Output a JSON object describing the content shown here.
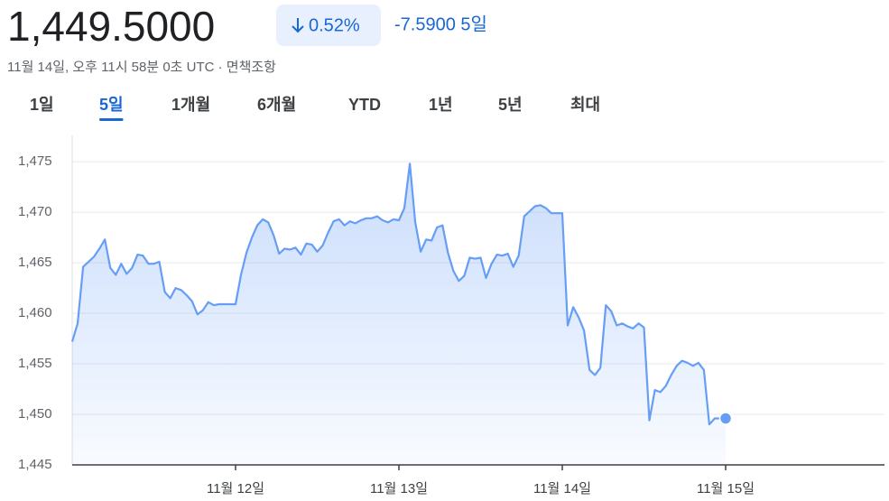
{
  "header": {
    "price": "1,449.5000",
    "change_pct": "0.52%",
    "change_abs": "-7.5900 5일",
    "timestamp": "11월 14일, 오후 11시 58분 0초 UTC · 면책조항"
  },
  "tabs": [
    "1일",
    "5일",
    "1개월",
    "6개월",
    "YTD",
    "1년",
    "5년",
    "최대"
  ],
  "selected_tab": 1,
  "chart_data": {
    "type": "line",
    "color": "#669df6",
    "categories": [
      null,
      null,
      null,
      null,
      null,
      null,
      null,
      null,
      null,
      null,
      null,
      null,
      null,
      null,
      null,
      null,
      null,
      null,
      null,
      null,
      null,
      null,
      null,
      null,
      null,
      null,
      null,
      null,
      null,
      null,
      "11월 12일",
      null,
      null,
      null,
      null,
      null,
      null,
      null,
      null,
      null,
      null,
      null,
      null,
      null,
      null,
      null,
      null,
      null,
      null,
      null,
      null,
      null,
      null,
      null,
      null,
      null,
      null,
      null,
      null,
      null,
      "11월 13일",
      null,
      null,
      null,
      null,
      null,
      null,
      null,
      null,
      null,
      null,
      null,
      null,
      null,
      null,
      null,
      null,
      null,
      null,
      null,
      null,
      null,
      null,
      null,
      null,
      null,
      null,
      null,
      null,
      null,
      "11월 14일",
      null,
      null,
      null,
      null,
      null,
      null,
      null,
      null,
      null,
      null,
      null,
      null,
      null,
      null,
      null,
      null,
      null,
      null,
      null,
      null,
      null,
      null,
      null,
      null,
      null,
      null,
      null,
      null,
      null,
      "11월 15일"
    ],
    "values": [
      1457.2,
      1459.0,
      1464.6,
      1465.1,
      1465.6,
      1466.4,
      1467.3,
      1464.5,
      1463.8,
      1464.9,
      1463.9,
      1464.5,
      1465.8,
      1465.7,
      1464.9,
      1464.9,
      1465.1,
      1462.1,
      1461.5,
      1462.5,
      1462.3,
      1461.8,
      1461.2,
      1459.9,
      1460.3,
      1461.1,
      1460.8,
      1460.9,
      1460.9,
      1460.9,
      1460.9,
      1463.8,
      1466.0,
      1467.5,
      1468.7,
      1469.3,
      1469.0,
      1467.7,
      1465.9,
      1466.4,
      1466.3,
      1466.5,
      1465.8,
      1466.9,
      1466.8,
      1466.1,
      1466.7,
      1468.0,
      1469.1,
      1469.3,
      1468.7,
      1469.1,
      1468.9,
      1469.2,
      1469.4,
      1469.4,
      1469.6,
      1469.2,
      1469.0,
      1469.3,
      1469.2,
      1470.4,
      1474.8,
      1469.0,
      1466.1,
      1467.3,
      1467.2,
      1468.5,
      1468.7,
      1466.0,
      1464.2,
      1463.2,
      1463.7,
      1465.5,
      1465.4,
      1465.5,
      1463.5,
      1464.9,
      1465.8,
      1465.7,
      1465.9,
      1464.6,
      1465.7,
      1469.6,
      1470.1,
      1470.6,
      1470.7,
      1470.4,
      1469.9,
      1469.9,
      1469.9,
      1458.8,
      1460.6,
      1459.6,
      1458.3,
      1454.4,
      1453.9,
      1454.6,
      1460.8,
      1460.2,
      1458.8,
      1459.0,
      1458.7,
      1458.5,
      1459.0,
      1458.6,
      1449.4,
      1452.4,
      1452.2,
      1452.8,
      1453.9,
      1454.8,
      1455.3,
      1455.1,
      1454.8,
      1455.1,
      1454.4,
      1449.0,
      1449.6,
      1449.6,
      1449.6
    ],
    "ylim": [
      1445,
      1477.6
    ],
    "yticks": [
      {
        "value": 1445,
        "label": "1,445"
      },
      {
        "value": 1450,
        "label": "1,450"
      },
      {
        "value": 1455,
        "label": "1,455"
      },
      {
        "value": 1460,
        "label": "1,460"
      },
      {
        "value": 1465,
        "label": "1,465"
      },
      {
        "value": 1470,
        "label": "1,470"
      },
      {
        "value": 1475,
        "label": "1,475"
      }
    ],
    "grid": true
  }
}
